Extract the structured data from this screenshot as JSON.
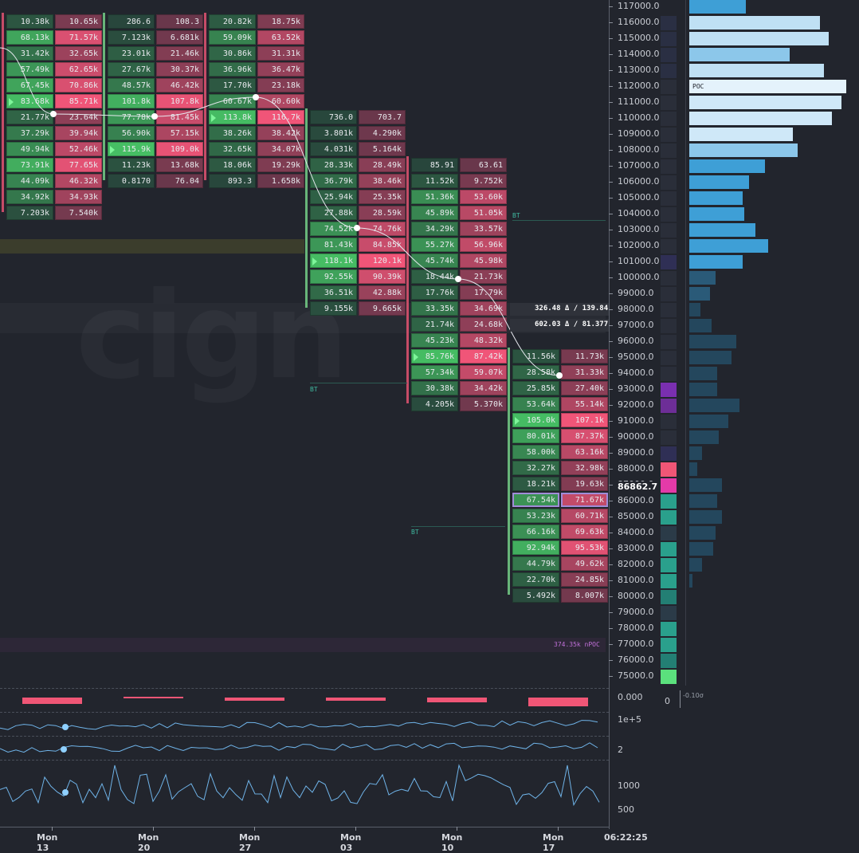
{
  "colors": {
    "background": "#22252d",
    "ask_light": "#7bd98c",
    "ask_dark": "#3a6d44",
    "bid_light": "#f05676",
    "bid_dark": "#6b3a4a",
    "profile_blue": "#4aa6d8",
    "profile_light": "#bfe0f4",
    "npoc": "#c070d8"
  },
  "weeks": [
    {
      "label": "Mon 13",
      "top_price": 117000,
      "rows": [
        [
          "10.38k",
          "10.65k"
        ],
        [
          "68.13k",
          "71.57k"
        ],
        [
          "31.42k",
          "32.65k"
        ],
        [
          "57.49k",
          "62.65k"
        ],
        [
          "67.45k",
          "70.86k"
        ],
        [
          "83.68k",
          "85.71k"
        ],
        [
          "21.77k",
          "23.64k"
        ],
        [
          "37.29k",
          "39.94k"
        ],
        [
          "49.94k",
          "52.46k"
        ],
        [
          "73.91k",
          "77.65k"
        ],
        [
          "44.09k",
          "46.32k"
        ],
        [
          "34.92k",
          "34.93k"
        ],
        [
          "7.203k",
          "7.540k"
        ]
      ],
      "mark_row": 5
    },
    {
      "label": "Mon 20",
      "top_price": 117000,
      "rows": [
        [
          "286.6",
          "108.3"
        ],
        [
          "7.123k",
          "6.681k"
        ],
        [
          "23.01k",
          "21.46k"
        ],
        [
          "27.67k",
          "30.37k"
        ],
        [
          "48.57k",
          "46.42k"
        ],
        [
          "101.8k",
          "107.8k"
        ],
        [
          "77.78k",
          "81.45k"
        ],
        [
          "56.90k",
          "57.15k"
        ],
        [
          "115.9k",
          "109.0k"
        ],
        [
          "11.23k",
          "13.68k"
        ],
        [
          "0.8170",
          "76.04"
        ]
      ],
      "mark_row": 8
    },
    {
      "label": "Mon 27",
      "top_price": 117000,
      "rows": [
        [
          "20.82k",
          "18.75k"
        ],
        [
          "59.09k",
          "63.52k"
        ],
        [
          "30.86k",
          "31.31k"
        ],
        [
          "36.96k",
          "36.47k"
        ],
        [
          "17.70k",
          "23.18k"
        ],
        [
          "60.67k",
          "60.60k"
        ],
        [
          "113.8k",
          "116.7k"
        ],
        [
          "38.26k",
          "38.42k"
        ],
        [
          "32.65k",
          "34.07k"
        ],
        [
          "18.06k",
          "19.29k"
        ],
        [
          "893.3",
          "1.658k"
        ]
      ],
      "mark_row": 6
    },
    {
      "label": "Mon 03",
      "top_price": 111000,
      "rows": [
        [
          "736.0",
          "703.7"
        ],
        [
          "3.801k",
          "4.290k"
        ],
        [
          "4.031k",
          "5.164k"
        ],
        [
          "28.33k",
          "28.49k"
        ],
        [
          "36.79k",
          "38.46k"
        ],
        [
          "25.94k",
          "25.35k"
        ],
        [
          "27.88k",
          "28.59k"
        ],
        [
          "74.52k",
          "74.76k"
        ],
        [
          "81.43k",
          "84.85k"
        ],
        [
          "118.1k",
          "120.1k"
        ],
        [
          "92.55k",
          "90.39k"
        ],
        [
          "36.51k",
          "42.88k"
        ],
        [
          "9.155k",
          "9.665k"
        ]
      ],
      "mark_row": 9
    },
    {
      "label": "Mon 10",
      "top_price": 108000,
      "rows": [
        [
          "85.91",
          "63.61"
        ],
        [
          "11.52k",
          "9.752k"
        ],
        [
          "51.36k",
          "53.60k"
        ],
        [
          "45.89k",
          "51.05k"
        ],
        [
          "34.29k",
          "33.57k"
        ],
        [
          "55.27k",
          "56.96k"
        ],
        [
          "45.74k",
          "45.98k"
        ],
        [
          "18.44k",
          "21.73k"
        ],
        [
          "17.76k",
          "17.79k"
        ],
        [
          "33.35k",
          "34.69k"
        ],
        [
          "21.74k",
          "24.68k"
        ],
        [
          "45.23k",
          "48.32k"
        ],
        [
          "85.76k",
          "87.42k"
        ],
        [
          "57.34k",
          "59.07k"
        ],
        [
          "30.38k",
          "34.42k"
        ],
        [
          "4.205k",
          "5.370k"
        ]
      ],
      "mark_row": 12
    },
    {
      "label": "Mon 17",
      "top_price": 96000,
      "rows": [
        [
          "11.56k",
          "11.73k"
        ],
        [
          "28.58k",
          "31.33k"
        ],
        [
          "25.85k",
          "27.40k"
        ],
        [
          "53.64k",
          "55.14k"
        ],
        [
          "105.0k",
          "107.1k"
        ],
        [
          "80.01k",
          "87.37k"
        ],
        [
          "58.00k",
          "63.16k"
        ],
        [
          "32.27k",
          "32.98k"
        ],
        [
          "18.21k",
          "19.63k"
        ],
        [
          "67.54k",
          "71.67k"
        ],
        [
          "53.23k",
          "60.71k"
        ],
        [
          "66.16k",
          "69.63k"
        ],
        [
          "92.94k",
          "95.53k"
        ],
        [
          "44.79k",
          "49.62k"
        ],
        [
          "22.70k",
          "24.85k"
        ],
        [
          "5.492k",
          "8.007k"
        ]
      ],
      "mark_row": 4,
      "poc_row": 9
    }
  ],
  "price_axis": [
    "117000.0",
    "116000.0",
    "115000.0",
    "114000.0",
    "113000.0",
    "112000.0",
    "111000.0",
    "110000.0",
    "109000.0",
    "108000.0",
    "107000.0",
    "106000.0",
    "105000.0",
    "104000.0",
    "103000.0",
    "102000.0",
    "101000.0",
    "100000.0",
    "99000.0",
    "98000.0",
    "97000.0",
    "96000.0",
    "95000.0",
    "94000.0",
    "93000.0",
    "92000.0",
    "91000.0",
    "90000.0",
    "89000.0",
    "88000.0",
    "87000.0",
    "86000.0",
    "85000.0",
    "84000.0",
    "83000.0",
    "82000.0",
    "81000.0",
    "80000.0",
    "79000.0",
    "78000.0",
    "77000.0",
    "76000.0",
    "75000.0"
  ],
  "current_price": "86862.7",
  "poc_label": "POC",
  "profile_levels": [
    0.36,
    0.83,
    0.89,
    0.64,
    0.86,
    1.0,
    0.97,
    0.91,
    0.66,
    0.69,
    0.48,
    0.38,
    0.34,
    0.35,
    0.42,
    0.5,
    0.34,
    0.17,
    0.13,
    0.07,
    0.14,
    0.3,
    0.27,
    0.18,
    0.18,
    0.32,
    0.25,
    0.19,
    0.08,
    0.05,
    0.21,
    0.18,
    0.21,
    0.17,
    0.15,
    0.08,
    0.02,
    0,
    0,
    0,
    0,
    0,
    0
  ],
  "bt_label": "BT",
  "delta_labels": [
    "326.48 Δ / 139.84",
    "602.03 Δ / 81.377"
  ],
  "npoc_label": "374.35k nPOC",
  "indicators": {
    "delta_value": "0.000",
    "volume_value": "1e+5",
    "ratio_value": "2",
    "count_values": [
      "1000",
      "500"
    ],
    "side_zero": "0",
    "side_sigma": "-0.10σ"
  },
  "time_label": "06:22:25"
}
